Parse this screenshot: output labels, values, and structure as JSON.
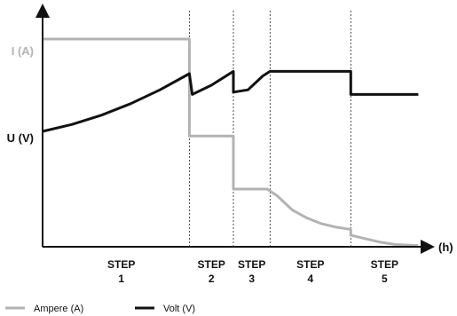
{
  "chart_data": {
    "type": "line",
    "title": "",
    "xlabel": "(h)",
    "y_axis_markers": [
      {
        "label": "I (A)",
        "series": "Ampere (A)"
      },
      {
        "label": "U (V)",
        "series": "Volt (V)"
      }
    ],
    "steps": [
      {
        "label": "STEP",
        "number": "1"
      },
      {
        "label": "STEP",
        "number": "2"
      },
      {
        "label": "STEP",
        "number": "3"
      },
      {
        "label": "STEP",
        "number": "4"
      },
      {
        "label": "STEP",
        "number": "5"
      }
    ],
    "step_boundaries": [
      1.0,
      1.3,
      1.55,
      2.1
    ],
    "x_range": [
      0,
      2.6
    ],
    "y_range": [
      0,
      1
    ],
    "grid": false,
    "legend": "bottom-left",
    "series": [
      {
        "name": "Ampere (A)",
        "color": "#b3b3b3",
        "points": [
          [
            0,
            0.9
          ],
          [
            1.0,
            0.9
          ],
          [
            1.0,
            0.48
          ],
          [
            1.3,
            0.48
          ],
          [
            1.3,
            0.25
          ],
          [
            1.53,
            0.25
          ],
          [
            1.6,
            0.22
          ],
          [
            1.7,
            0.16
          ],
          [
            1.8,
            0.125
          ],
          [
            1.9,
            0.1
          ],
          [
            2.0,
            0.085
          ],
          [
            2.1,
            0.075
          ],
          [
            2.1,
            0.05
          ],
          [
            2.2,
            0.035
          ],
          [
            2.3,
            0.02
          ],
          [
            2.4,
            0.01
          ],
          [
            2.56,
            0.005
          ]
        ]
      },
      {
        "name": "Volt (V)",
        "color": "#111111",
        "points": [
          [
            0,
            0.5
          ],
          [
            0.2,
            0.53
          ],
          [
            0.4,
            0.57
          ],
          [
            0.6,
            0.62
          ],
          [
            0.8,
            0.68
          ],
          [
            1.0,
            0.75
          ],
          [
            1.02,
            0.66
          ],
          [
            1.15,
            0.7
          ],
          [
            1.3,
            0.76
          ],
          [
            1.3,
            0.67
          ],
          [
            1.4,
            0.68
          ],
          [
            1.5,
            0.74
          ],
          [
            1.55,
            0.76
          ],
          [
            2.1,
            0.76
          ],
          [
            2.1,
            0.66
          ],
          [
            2.56,
            0.66
          ]
        ]
      }
    ]
  }
}
